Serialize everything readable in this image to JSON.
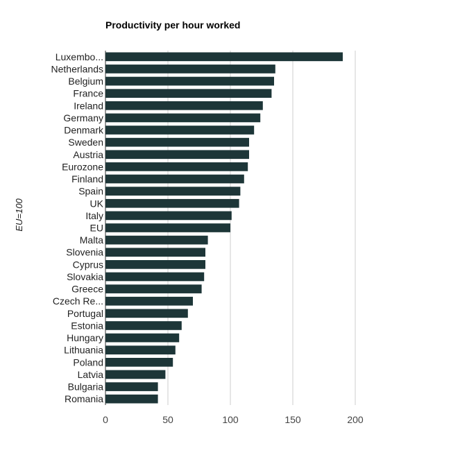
{
  "chart_data": {
    "type": "bar",
    "orientation": "horizontal",
    "title": "Productivity per hour worked",
    "ylabel": "EU=100",
    "xlabel": "",
    "categories": [
      "Luxembo...",
      "Netherlands",
      "Belgium",
      "France",
      "Ireland",
      "Germany",
      "Denmark",
      "Sweden",
      "Austria",
      "Eurozone",
      "Finland",
      "Spain",
      "UK",
      "Italy",
      "EU",
      "Malta",
      "Slovenia",
      "Cyprus",
      "Slovakia",
      "Greece",
      "Czech Re...",
      "Portugal",
      "Estonia",
      "Hungary",
      "Lithuania",
      "Poland",
      "Latvia",
      "Bulgaria",
      "Romania"
    ],
    "values": [
      190,
      136,
      135,
      133,
      126,
      124,
      119,
      115,
      115,
      114,
      111,
      108,
      107,
      101,
      100,
      82,
      80,
      80,
      79,
      77,
      70,
      66,
      61,
      59,
      56,
      54,
      48,
      42,
      42
    ],
    "xlim": [
      0,
      200
    ],
    "xticks": [
      0,
      50,
      100,
      150,
      200
    ],
    "grid": true,
    "bar_color": "#1d3638",
    "grid_color": "#cccccc"
  }
}
